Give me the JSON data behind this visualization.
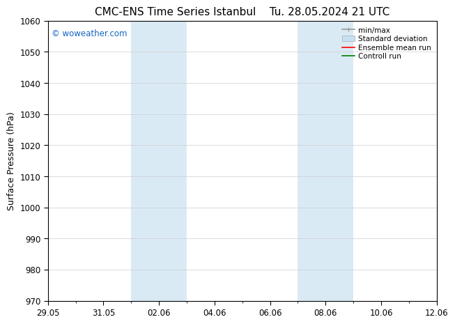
{
  "title_left": "CMC-ENS Time Series Istanbul",
  "title_right": "Tu. 28.05.2024 21 UTC",
  "ylabel": "Surface Pressure (hPa)",
  "ylim": [
    970,
    1060
  ],
  "yticks": [
    970,
    980,
    990,
    1000,
    1010,
    1020,
    1030,
    1040,
    1050,
    1060
  ],
  "xtick_labels": [
    "29.05",
    "31.05",
    "02.06",
    "04.06",
    "06.06",
    "08.06",
    "10.06",
    "12.06"
  ],
  "xtick_positions": [
    0,
    2,
    4,
    6,
    8,
    10,
    12,
    14
  ],
  "xlim": [
    0,
    14
  ],
  "shaded_regions": [
    {
      "xstart": 3.0,
      "xend": 5.0
    },
    {
      "xstart": 9.0,
      "xend": 11.0
    }
  ],
  "shaded_color": "#daeaf5",
  "watermark_text": "© woweather.com",
  "watermark_color": "#1565c0",
  "legend_entries": [
    {
      "label": "min/max",
      "color": "#999999",
      "lw": 1.2
    },
    {
      "label": "Standard deviation",
      "color": "#c8dff0",
      "lw": 8
    },
    {
      "label": "Ensemble mean run",
      "color": "#ff0000",
      "lw": 1.2
    },
    {
      "label": "Controll run",
      "color": "#008000",
      "lw": 1.2
    }
  ],
  "bg_color": "#ffffff",
  "grid_color": "#cccccc",
  "title_fontsize": 11,
  "ylabel_fontsize": 9,
  "tick_fontsize": 8.5,
  "legend_fontsize": 7.5
}
